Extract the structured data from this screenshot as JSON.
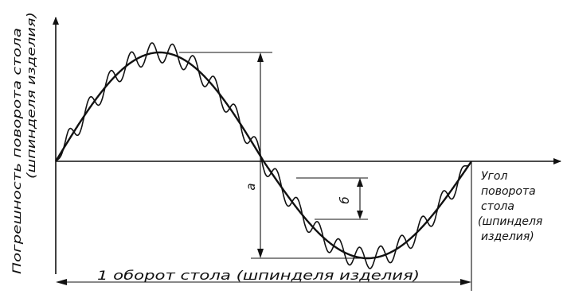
{
  "labels": {
    "y_axis_line1": "Погрешность поворота стола",
    "y_axis_line2": "(шпинделя изделия)",
    "x_axis_lines": [
      "Угол",
      "поворота",
      "стола",
      "(шпинделя",
      "изделия)"
    ],
    "bottom": "1 оборот стола (шпинделя изделия)",
    "amplitude_a": "а",
    "amplitude_b": "б"
  },
  "colors": {
    "ink": "#111111",
    "background": "#ffffff"
  }
}
